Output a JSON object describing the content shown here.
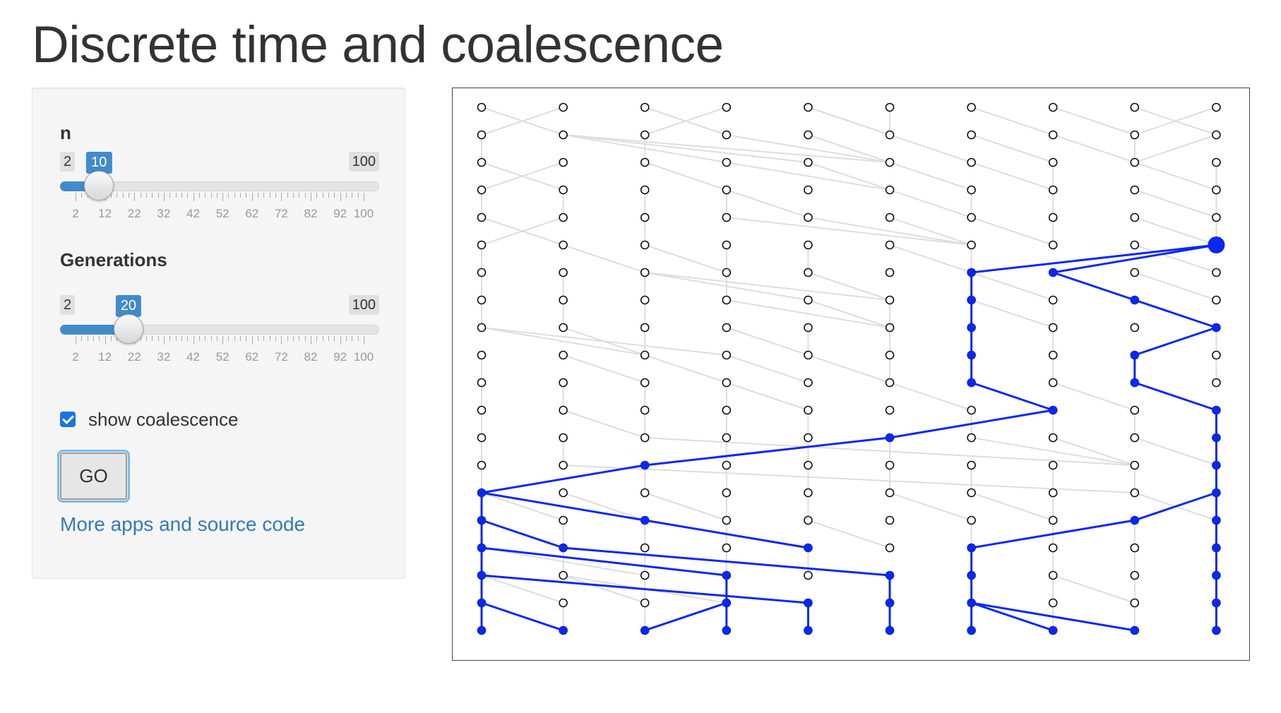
{
  "page": {
    "title": "Discrete time and coalescence"
  },
  "sidebar": {
    "n": {
      "label": "n",
      "min_label": "2",
      "max_label": "100",
      "value": 10,
      "min": 2,
      "max": 100,
      "tick_labels": [
        "2",
        "12",
        "22",
        "32",
        "42",
        "52",
        "62",
        "72",
        "82",
        "92",
        "100"
      ]
    },
    "generations": {
      "label": "Generations",
      "min_label": "2",
      "max_label": "100",
      "value": 20,
      "min": 2,
      "max": 100,
      "tick_labels": [
        "2",
        "12",
        "22",
        "32",
        "42",
        "52",
        "62",
        "72",
        "82",
        "92",
        "100"
      ]
    },
    "show_coalescence": {
      "label": "show coalescence",
      "checked": true
    },
    "go_button": {
      "label": "GO"
    },
    "more_link": {
      "label": "More apps and source code"
    }
  },
  "colors": {
    "accent": "#428bca",
    "lineage": "#0a28f0",
    "background_edge": "#dddddd",
    "link": "#337ab7"
  },
  "plot": {
    "individuals": 10,
    "generations": 20,
    "mrca": {
      "individual": 10,
      "generation": 6
    },
    "background_links": [
      [
        1,
        1,
        2,
        2
      ],
      [
        2,
        1,
        1,
        2
      ],
      [
        3,
        1,
        4,
        2
      ],
      [
        4,
        1,
        3,
        2
      ],
      [
        5,
        1,
        6,
        2
      ],
      [
        6,
        1,
        6,
        2
      ],
      [
        7,
        1,
        8,
        2
      ],
      [
        8,
        1,
        9,
        2
      ],
      [
        9,
        1,
        10,
        2
      ],
      [
        10,
        1,
        9,
        2
      ],
      [
        1,
        2,
        1,
        3
      ],
      [
        2,
        2,
        4,
        3
      ],
      [
        2,
        2,
        5,
        3
      ],
      [
        2,
        2,
        6,
        3
      ],
      [
        3,
        2,
        3,
        3
      ],
      [
        4,
        2,
        6,
        3
      ],
      [
        5,
        2,
        6,
        3
      ],
      [
        6,
        2,
        7,
        3
      ],
      [
        7,
        2,
        8,
        3
      ],
      [
        8,
        2,
        9,
        3
      ],
      [
        9,
        2,
        9,
        3
      ],
      [
        10,
        2,
        9,
        3
      ],
      [
        1,
        3,
        2,
        4
      ],
      [
        2,
        3,
        1,
        4
      ],
      [
        3,
        3,
        4,
        4
      ],
      [
        4,
        3,
        6,
        4
      ],
      [
        5,
        3,
        6,
        4
      ],
      [
        6,
        3,
        7,
        4
      ],
      [
        7,
        3,
        8,
        4
      ],
      [
        8,
        3,
        8,
        4
      ],
      [
        9,
        3,
        10,
        4
      ],
      [
        10,
        3,
        10,
        4
      ],
      [
        1,
        4,
        1,
        5
      ],
      [
        2,
        4,
        2,
        5
      ],
      [
        3,
        4,
        3,
        5
      ],
      [
        4,
        4,
        4,
        5
      ],
      [
        4,
        4,
        5,
        5
      ],
      [
        6,
        4,
        7,
        5
      ],
      [
        7,
        4,
        7,
        5
      ],
      [
        8,
        4,
        8,
        5
      ],
      [
        9,
        4,
        10,
        5
      ],
      [
        10,
        4,
        10,
        5
      ],
      [
        1,
        5,
        2,
        6
      ],
      [
        2,
        5,
        1,
        6
      ],
      [
        3,
        5,
        3,
        6
      ],
      [
        4,
        5,
        7,
        6
      ],
      [
        5,
        5,
        7,
        6
      ],
      [
        6,
        5,
        7,
        6
      ],
      [
        7,
        5,
        8,
        6
      ],
      [
        8,
        5,
        8,
        6
      ],
      [
        9,
        5,
        10,
        6
      ],
      [
        10,
        5,
        10,
        6
      ],
      [
        1,
        6,
        1,
        7
      ],
      [
        2,
        6,
        3,
        7
      ],
      [
        3,
        6,
        4,
        7
      ],
      [
        4,
        6,
        4,
        7
      ],
      [
        5,
        6,
        5,
        7
      ],
      [
        6,
        6,
        7,
        7
      ],
      [
        7,
        6,
        7,
        7
      ],
      [
        9,
        6,
        10,
        7
      ],
      [
        1,
        7,
        1,
        8
      ],
      [
        2,
        7,
        2,
        8
      ],
      [
        3,
        7,
        3,
        8
      ],
      [
        3,
        7,
        5,
        8
      ],
      [
        3,
        7,
        6,
        8
      ],
      [
        4,
        7,
        4,
        8
      ],
      [
        5,
        7,
        6,
        8
      ],
      [
        7,
        7,
        8,
        8
      ],
      [
        8,
        7,
        9,
        8
      ],
      [
        9,
        7,
        10,
        8
      ],
      [
        1,
        8,
        1,
        9
      ],
      [
        2,
        8,
        2,
        9
      ],
      [
        3,
        8,
        3,
        9
      ],
      [
        4,
        8,
        6,
        9
      ],
      [
        5,
        8,
        6,
        9
      ],
      [
        6,
        8,
        6,
        9
      ],
      [
        7,
        8,
        8,
        9
      ],
      [
        8,
        8,
        8,
        9
      ],
      [
        1,
        9,
        3,
        10
      ],
      [
        1,
        9,
        4,
        10
      ],
      [
        2,
        9,
        3,
        10
      ],
      [
        3,
        9,
        3,
        10
      ],
      [
        4,
        9,
        5,
        10
      ],
      [
        5,
        9,
        5,
        10
      ],
      [
        6,
        9,
        6,
        10
      ],
      [
        8,
        9,
        8,
        10
      ],
      [
        10,
        9,
        10,
        10
      ],
      [
        1,
        10,
        1,
        11
      ],
      [
        2,
        10,
        3,
        11
      ],
      [
        3,
        10,
        4,
        11
      ],
      [
        4,
        10,
        5,
        11
      ],
      [
        5,
        10,
        6,
        11
      ],
      [
        6,
        10,
        6,
        11
      ],
      [
        8,
        10,
        8,
        11
      ],
      [
        9,
        10,
        9,
        11
      ],
      [
        10,
        10,
        10,
        11
      ],
      [
        1,
        11,
        1,
        12
      ],
      [
        2,
        11,
        2,
        12
      ],
      [
        3,
        11,
        3,
        12
      ],
      [
        4,
        11,
        4,
        12
      ],
      [
        4,
        11,
        5,
        12
      ],
      [
        6,
        11,
        7,
        12
      ],
      [
        8,
        11,
        9,
        12
      ],
      [
        9,
        11,
        10,
        12
      ],
      [
        1,
        12,
        1,
        13
      ],
      [
        2,
        12,
        3,
        13
      ],
      [
        3,
        12,
        3,
        13
      ],
      [
        4,
        12,
        4,
        13
      ],
      [
        5,
        12,
        5,
        13
      ],
      [
        7,
        12,
        7,
        13
      ],
      [
        8,
        12,
        8,
        13
      ],
      [
        9,
        12,
        9,
        13
      ],
      [
        1,
        13,
        1,
        14
      ],
      [
        2,
        13,
        2,
        14
      ],
      [
        3,
        13,
        9,
        14
      ],
      [
        4,
        13,
        4,
        14
      ],
      [
        5,
        13,
        5,
        14
      ],
      [
        6,
        13,
        6,
        14
      ],
      [
        7,
        13,
        9,
        14
      ],
      [
        8,
        13,
        9,
        14
      ],
      [
        9,
        13,
        10,
        14
      ],
      [
        1,
        14,
        1,
        15
      ],
      [
        2,
        14,
        9,
        15
      ],
      [
        3,
        14,
        3,
        15
      ],
      [
        4,
        14,
        4,
        15
      ],
      [
        5,
        14,
        5,
        15
      ],
      [
        6,
        14,
        6,
        15
      ],
      [
        7,
        14,
        7,
        15
      ],
      [
        8,
        14,
        8,
        15
      ],
      [
        9,
        14,
        9,
        15
      ],
      [
        1,
        15,
        2,
        16
      ],
      [
        2,
        15,
        3,
        16
      ],
      [
        3,
        15,
        4,
        16
      ],
      [
        4,
        15,
        4,
        16
      ],
      [
        5,
        15,
        5,
        16
      ],
      [
        6,
        15,
        7,
        16
      ],
      [
        7,
        15,
        8,
        16
      ],
      [
        8,
        15,
        8,
        16
      ],
      [
        9,
        15,
        10,
        16
      ],
      [
        1,
        16,
        2,
        17
      ],
      [
        2,
        16,
        2,
        17
      ],
      [
        3,
        16,
        3,
        17
      ],
      [
        4,
        16,
        4,
        17
      ],
      [
        5,
        16,
        6,
        17
      ],
      [
        7,
        16,
        7,
        17
      ],
      [
        8,
        16,
        8,
        17
      ],
      [
        9,
        16,
        9,
        17
      ],
      [
        1,
        17,
        3,
        18
      ],
      [
        2,
        17,
        2,
        18
      ],
      [
        3,
        17,
        3,
        18
      ],
      [
        4,
        17,
        4,
        18
      ],
      [
        5,
        17,
        5,
        18
      ],
      [
        8,
        17,
        8,
        18
      ],
      [
        9,
        17,
        9,
        18
      ],
      [
        1,
        18,
        2,
        19
      ],
      [
        2,
        18,
        3,
        19
      ],
      [
        2,
        18,
        4,
        19
      ],
      [
        3,
        18,
        3,
        19
      ],
      [
        8,
        18,
        8,
        19
      ],
      [
        8,
        18,
        9,
        19
      ],
      [
        9,
        18,
        9,
        19
      ],
      [
        1,
        19,
        1,
        20
      ],
      [
        2,
        19,
        2,
        20
      ],
      [
        3,
        19,
        3,
        20
      ],
      [
        4,
        19,
        4,
        20
      ],
      [
        6,
        19,
        6,
        20
      ],
      [
        8,
        19,
        8,
        20
      ],
      [
        9,
        19,
        9,
        20
      ]
    ],
    "lineage_links": [
      [
        10,
        6,
        7,
        7
      ],
      [
        10,
        6,
        8,
        7
      ],
      [
        7,
        7,
        7,
        8
      ],
      [
        7,
        8,
        7,
        9
      ],
      [
        7,
        9,
        7,
        10
      ],
      [
        7,
        10,
        7,
        11
      ],
      [
        7,
        11,
        8,
        12
      ],
      [
        8,
        12,
        6,
        13
      ],
      [
        6,
        13,
        3,
        14
      ],
      [
        3,
        14,
        1,
        15
      ],
      [
        8,
        7,
        9,
        8
      ],
      [
        9,
        8,
        10,
        9
      ],
      [
        10,
        9,
        9,
        10
      ],
      [
        9,
        10,
        9,
        11
      ],
      [
        9,
        11,
        10,
        12
      ],
      [
        10,
        12,
        10,
        13
      ],
      [
        10,
        13,
        10,
        14
      ],
      [
        10,
        14,
        10,
        15
      ],
      [
        1,
        15,
        1,
        16
      ],
      [
        1,
        15,
        3,
        16
      ],
      [
        1,
        16,
        1,
        17
      ],
      [
        1,
        16,
        2,
        17
      ],
      [
        3,
        16,
        5,
        17
      ],
      [
        1,
        17,
        1,
        18
      ],
      [
        1,
        17,
        4,
        18
      ],
      [
        2,
        17,
        6,
        18
      ],
      [
        1,
        18,
        1,
        19
      ],
      [
        1,
        18,
        5,
        19
      ],
      [
        4,
        18,
        4,
        19
      ],
      [
        6,
        18,
        6,
        19
      ],
      [
        1,
        19,
        1,
        20
      ],
      [
        1,
        19,
        2,
        20
      ],
      [
        4,
        19,
        3,
        20
      ],
      [
        4,
        19,
        4,
        20
      ],
      [
        5,
        19,
        5,
        20
      ],
      [
        6,
        19,
        6,
        20
      ],
      [
        10,
        15,
        10,
        16
      ],
      [
        10,
        15,
        9,
        16
      ],
      [
        9,
        16,
        7,
        17
      ],
      [
        7,
        17,
        7,
        18
      ],
      [
        7,
        18,
        7,
        19
      ],
      [
        7,
        19,
        7,
        20
      ],
      [
        7,
        19,
        8,
        20
      ],
      [
        7,
        19,
        9,
        20
      ],
      [
        10,
        16,
        10,
        17
      ],
      [
        10,
        17,
        10,
        18
      ],
      [
        10,
        18,
        10,
        19
      ],
      [
        10,
        19,
        10,
        20
      ]
    ],
    "lineage_nodes": [
      [
        7,
        7
      ],
      [
        8,
        7
      ],
      [
        7,
        8
      ],
      [
        9,
        8
      ],
      [
        7,
        9
      ],
      [
        10,
        9
      ],
      [
        7,
        10
      ],
      [
        9,
        10
      ],
      [
        7,
        11
      ],
      [
        9,
        11
      ],
      [
        8,
        12
      ],
      [
        10,
        12
      ],
      [
        6,
        13
      ],
      [
        10,
        13
      ],
      [
        3,
        14
      ],
      [
        10,
        14
      ],
      [
        1,
        15
      ],
      [
        10,
        15
      ],
      [
        1,
        16
      ],
      [
        3,
        16
      ],
      [
        9,
        16
      ],
      [
        10,
        16
      ],
      [
        1,
        17
      ],
      [
        2,
        17
      ],
      [
        5,
        17
      ],
      [
        7,
        17
      ],
      [
        10,
        17
      ],
      [
        1,
        18
      ],
      [
        4,
        18
      ],
      [
        6,
        18
      ],
      [
        7,
        18
      ],
      [
        10,
        18
      ],
      [
        1,
        19
      ],
      [
        4,
        19
      ],
      [
        5,
        19
      ],
      [
        6,
        19
      ],
      [
        7,
        19
      ],
      [
        10,
        19
      ],
      [
        1,
        20
      ],
      [
        2,
        20
      ],
      [
        3,
        20
      ],
      [
        4,
        20
      ],
      [
        5,
        20
      ],
      [
        6,
        20
      ],
      [
        7,
        20
      ],
      [
        8,
        20
      ],
      [
        9,
        20
      ],
      [
        10,
        20
      ]
    ]
  }
}
